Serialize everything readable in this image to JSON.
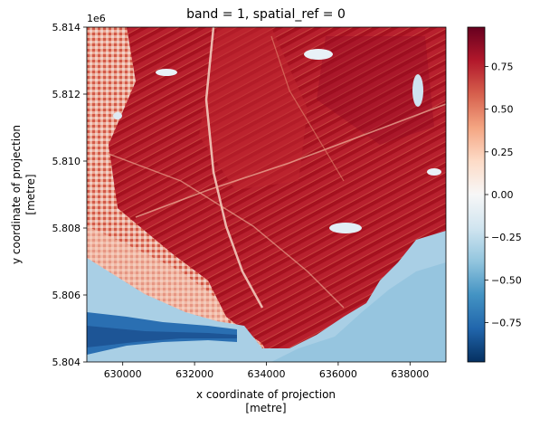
{
  "chart_data": {
    "type": "heatmap",
    "title": "band = 1, spatial_ref = 0",
    "xlabel": [
      "x coordinate of projection",
      "[metre]"
    ],
    "ylabel": [
      "y coordinate of projection",
      "[metre]"
    ],
    "xlim": [
      629000,
      639000
    ],
    "ylim": [
      5804000,
      5814000
    ],
    "x_ticks": [
      630000,
      632000,
      634000,
      636000,
      638000
    ],
    "x_tick_labels": [
      "630000",
      "632000",
      "634000",
      "636000",
      "638000"
    ],
    "y_ticks": [
      5804000,
      5806000,
      5808000,
      5810000,
      5812000,
      5814000
    ],
    "y_tick_labels": [
      "5.804",
      "5.806",
      "5.808",
      "5.810",
      "5.812",
      "5.814"
    ],
    "y_offset_label": "1e6",
    "colorbar": {
      "cmap": "RdBu_r",
      "vmin": -0.98,
      "vmax": 0.98,
      "ticks": [
        -0.75,
        -0.5,
        -0.25,
        0.0,
        0.25,
        0.5,
        0.75
      ],
      "tick_labels": [
        "−0.75",
        "−0.50",
        "−0.25",
        "0.00",
        "0.25",
        "0.50",
        "0.75"
      ]
    },
    "regions": [
      {
        "name": "vegetation-field",
        "value": 0.85
      },
      {
        "name": "water-bay",
        "value": -0.4
      },
      {
        "name": "river",
        "value": -0.7
      },
      {
        "name": "urban-area",
        "value": 0.25
      },
      {
        "name": "lake",
        "value": -0.05
      }
    ],
    "grid": false
  }
}
